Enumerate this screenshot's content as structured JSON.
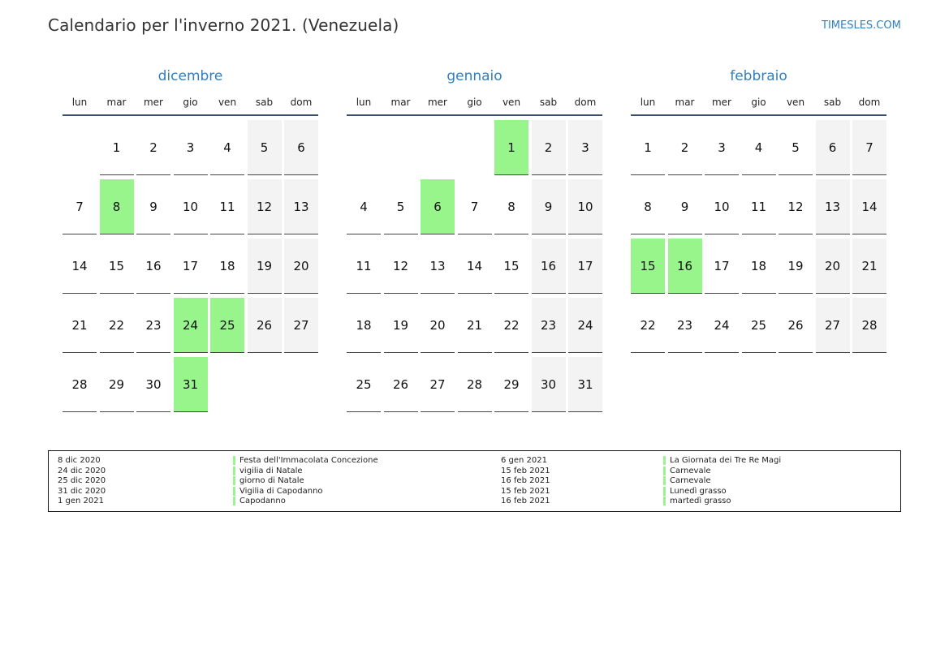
{
  "header": {
    "title": "Calendario per l'inverno 2021. (Venezuela)",
    "brand": "TIMESLES.COM"
  },
  "colors": {
    "accent": "#2f7fc1",
    "holiday": "#98f58c",
    "weekend": "#f3f3f3"
  },
  "weekdays": [
    "lun",
    "mar",
    "mer",
    "gio",
    "ven",
    "sab",
    "dom"
  ],
  "months": [
    {
      "name": "dicembre",
      "first_weekday": 1,
      "days": 31,
      "holidays": [
        8,
        24,
        25,
        31
      ]
    },
    {
      "name": "gennaio",
      "first_weekday": 4,
      "days": 31,
      "holidays": [
        1,
        6
      ]
    },
    {
      "name": "febbraio",
      "first_weekday": 0,
      "days": 28,
      "holidays": [
        15,
        16
      ]
    }
  ],
  "legend": {
    "left": [
      {
        "date": "8 dic 2020",
        "name": "Festa dell'Immacolata Concezione"
      },
      {
        "date": "24 dic 2020",
        "name": "vigilia di Natale"
      },
      {
        "date": "25 dic 2020",
        "name": "giorno di Natale"
      },
      {
        "date": "31 dic 2020",
        "name": "Vigilia di Capodanno"
      },
      {
        "date": "1 gen 2021",
        "name": "Capodanno"
      }
    ],
    "right": [
      {
        "date": "6 gen 2021",
        "name": "La Giornata dei Tre Re Magi"
      },
      {
        "date": "15 feb 2021",
        "name": "Carnevale"
      },
      {
        "date": "16 feb 2021",
        "name": "Carnevale"
      },
      {
        "date": "15 feb 2021",
        "name": "Lunedì grasso"
      },
      {
        "date": "16 feb 2021",
        "name": "martedì grasso"
      }
    ]
  }
}
